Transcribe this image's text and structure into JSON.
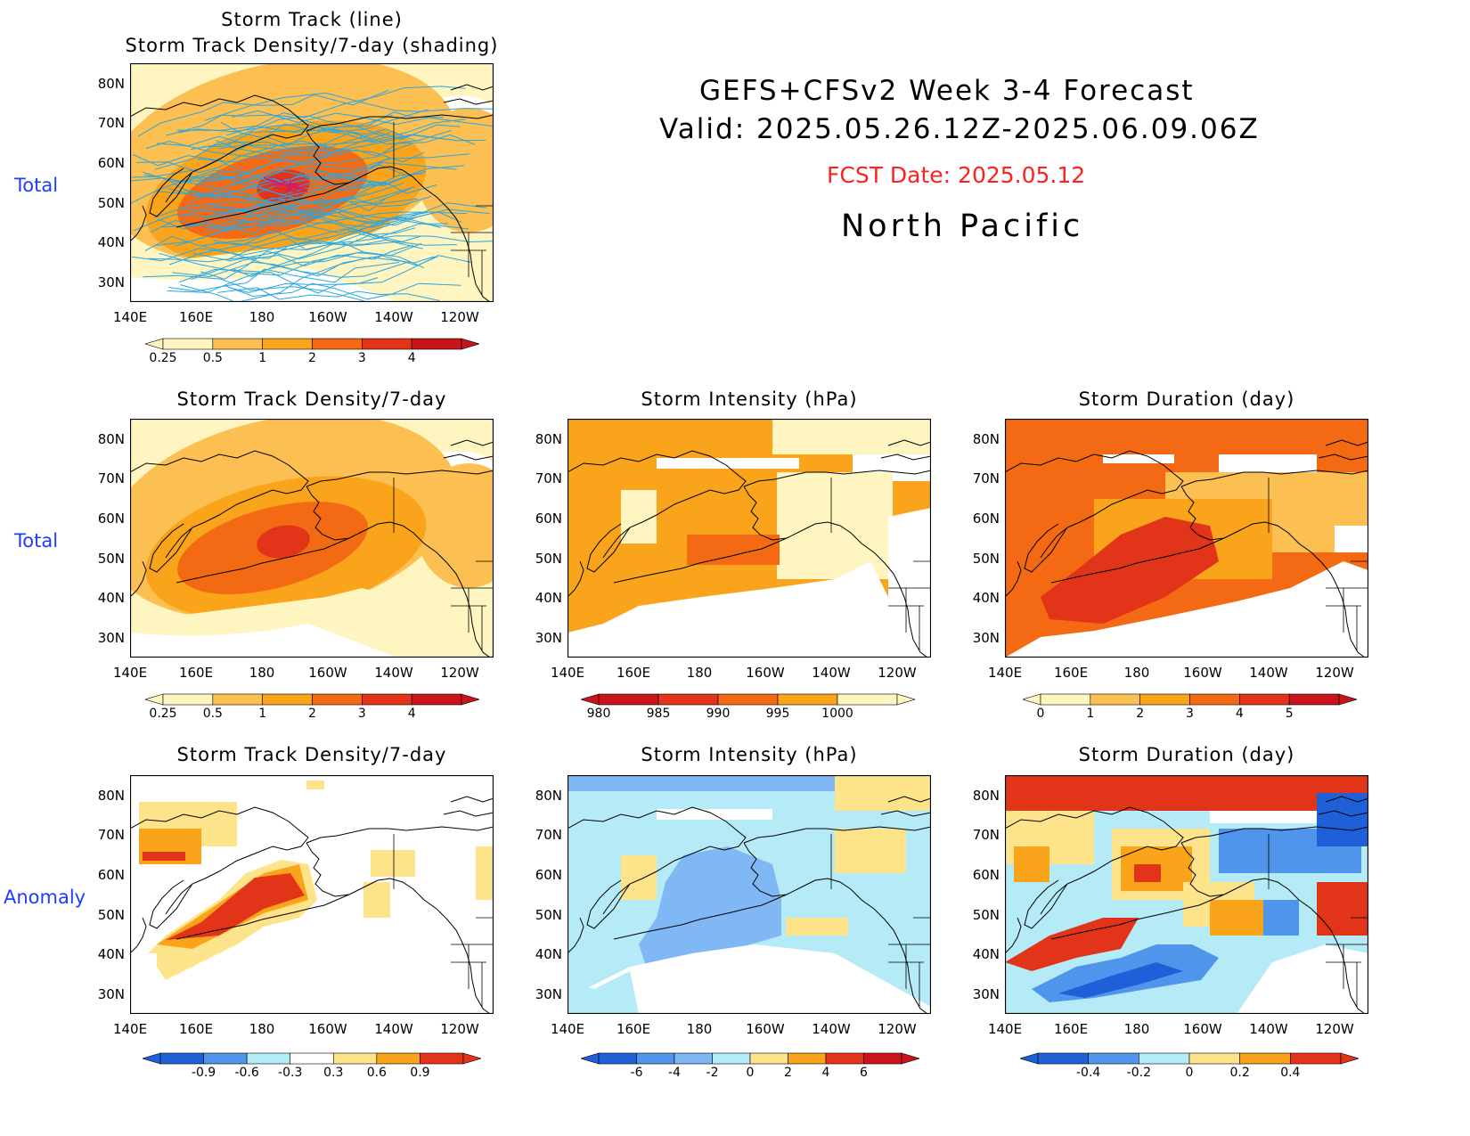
{
  "header": {
    "line1": "GEFS+CFSv2 Week 3-4 Forecast",
    "line2": "Valid: 2025.05.26.12Z-2025.06.09.06Z",
    "fcst_date": "FCST Date: 2025.05.12",
    "region": "North Pacific"
  },
  "row_labels": {
    "total_top": "Total",
    "total_mid": "Total",
    "anomaly": "Anomaly"
  },
  "colors": {
    "ocean_blank": "#ffffff",
    "track_line": "#2aa6e0",
    "light_yellow": "#fff5c0",
    "yellow": "#fde38a",
    "light_orange": "#fbbf52",
    "orange": "#f9a41b",
    "dark_orange": "#f46a14",
    "red": "#e23418",
    "light_blue": "#b5eaf7",
    "mid_blue": "#7fb8f4",
    "blue": "#4f95ec",
    "dark_blue": "#1f5fd8"
  },
  "lat_labels": [
    "80N",
    "70N",
    "60N",
    "50N",
    "40N",
    "30N"
  ],
  "lon_labels": [
    "140E",
    "160E",
    "180",
    "160W",
    "140W",
    "120W"
  ],
  "panels": [
    {
      "id": "p0",
      "title1": "Storm Track (line)",
      "title2": "Storm Track Density/7-day (shading)",
      "kind": "track",
      "colorbar": {
        "ticks": [
          "0.25",
          "0.5",
          "1",
          "2",
          "3",
          "4"
        ],
        "colors": [
          "#fff5c0",
          "#fbbf52",
          "#f9a41b",
          "#f46a14",
          "#e23418",
          "#c8141a"
        ]
      }
    },
    {
      "id": "p1",
      "title1": "Storm Track Density/7-day",
      "kind": "density",
      "colorbar": {
        "ticks": [
          "0.25",
          "0.5",
          "1",
          "2",
          "3",
          "4"
        ],
        "colors": [
          "#fff5c0",
          "#fbbf52",
          "#f9a41b",
          "#f46a14",
          "#e23418",
          "#c8141a"
        ]
      }
    },
    {
      "id": "p2",
      "title1": "Storm Intensity (hPa)",
      "kind": "intensity",
      "colorbar": {
        "ticks": [
          "980",
          "985",
          "990",
          "995",
          "1000"
        ],
        "colors": [
          "#c8141a",
          "#e23418",
          "#f46a14",
          "#f9a41b",
          "#fff5c0"
        ]
      }
    },
    {
      "id": "p3",
      "title1": "Storm Duration (day)",
      "kind": "duration",
      "colorbar": {
        "ticks": [
          "0",
          "1",
          "2",
          "3",
          "4",
          "5"
        ],
        "colors": [
          "#fff5c0",
          "#fbbf52",
          "#f9a41b",
          "#f46a14",
          "#e23418",
          "#c8141a"
        ]
      }
    },
    {
      "id": "p4",
      "title1": "Storm Track Density/7-day",
      "kind": "density_anom",
      "colorbar": {
        "ticks": [
          "-0.9",
          "-0.6",
          "-0.3",
          "0.3",
          "0.6",
          "0.9"
        ],
        "colors": [
          "#1f5fd8",
          "#4f95ec",
          "#b5eaf7",
          "#ffffff",
          "#fde38a",
          "#f9a41b",
          "#e23418"
        ]
      }
    },
    {
      "id": "p5",
      "title1": "Storm Intensity (hPa)",
      "kind": "intensity_anom",
      "colorbar": {
        "ticks": [
          "-6",
          "-4",
          "-2",
          "0",
          "2",
          "4",
          "6"
        ],
        "colors": [
          "#1f5fd8",
          "#4f95ec",
          "#7fb8f4",
          "#b5eaf7",
          "#fde38a",
          "#f9a41b",
          "#e23418",
          "#c8141a"
        ]
      }
    },
    {
      "id": "p6",
      "title1": "Storm Duration (day)",
      "kind": "duration_anom",
      "colorbar": {
        "ticks": [
          "-0.4",
          "-0.2",
          "0",
          "0.2",
          "0.4"
        ],
        "colors": [
          "#1f5fd8",
          "#4f95ec",
          "#b5eaf7",
          "#fde38a",
          "#f9a41b",
          "#e23418"
        ]
      }
    }
  ]
}
